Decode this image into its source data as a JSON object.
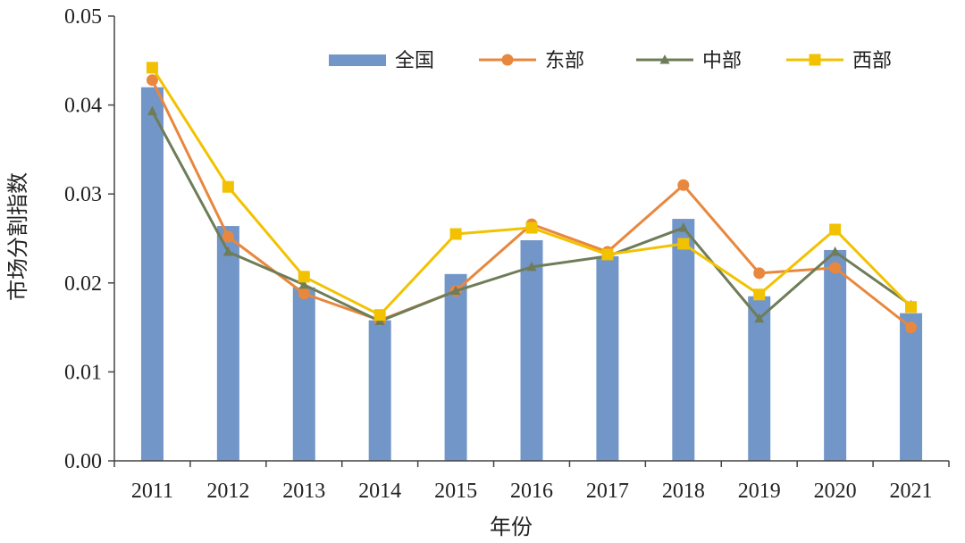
{
  "chart_data": {
    "type": "bar",
    "title": "",
    "xlabel": "年份",
    "ylabel": "市场分割指数",
    "ylim": [
      0,
      0.05
    ],
    "yticks": [
      "0.00",
      "0.01",
      "0.02",
      "0.03",
      "0.04",
      "0.05"
    ],
    "categories": [
      "2011",
      "2012",
      "2013",
      "2014",
      "2015",
      "2016",
      "2017",
      "2018",
      "2019",
      "2020",
      "2021"
    ],
    "grid": false,
    "legend_position": "top-right",
    "series": [
      {
        "name": "全国",
        "kind": "bar",
        "color": "#7396c8",
        "values": [
          0.042,
          0.0264,
          0.0195,
          0.0158,
          0.021,
          0.0248,
          0.023,
          0.0272,
          0.0185,
          0.0237,
          0.0166
        ]
      },
      {
        "name": "东部",
        "kind": "line",
        "marker": "circle",
        "color": "#e8873e",
        "values": [
          0.0428,
          0.0252,
          0.0188,
          0.0158,
          0.0191,
          0.0266,
          0.0235,
          0.031,
          0.0211,
          0.0217,
          0.015
        ]
      },
      {
        "name": "中部",
        "kind": "line",
        "marker": "triangle",
        "color": "#6e7d58",
        "values": [
          0.0393,
          0.0235,
          0.0198,
          0.0157,
          0.0191,
          0.0218,
          0.023,
          0.0262,
          0.016,
          0.0235,
          0.0175
        ]
      },
      {
        "name": "西部",
        "kind": "line",
        "marker": "square",
        "color": "#f2c200",
        "values": [
          0.0442,
          0.0308,
          0.0207,
          0.0164,
          0.0255,
          0.0262,
          0.0232,
          0.0244,
          0.0187,
          0.026,
          0.0173
        ]
      }
    ]
  }
}
